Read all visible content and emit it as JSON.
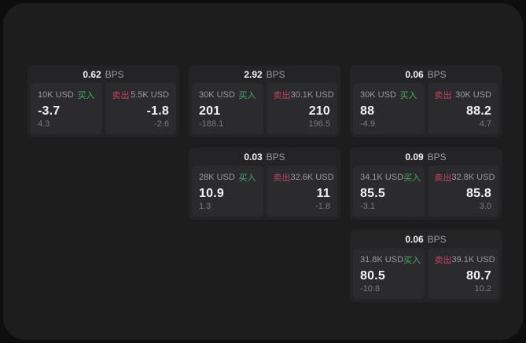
{
  "colors": {
    "outer_bg": "#0e0e0e",
    "panel_bg": "#1d1d1e",
    "card_bg": "#242426",
    "tile_bg": "#2b2b2d",
    "text_primary": "#f2f2f3",
    "text_secondary": "#9a9a9d",
    "text_muted": "#7b7b7f",
    "buy_green": "#44ab5e",
    "sell_red": "#c04459"
  },
  "labels": {
    "bps": "BPS",
    "buy": "买入",
    "sell": "卖出"
  },
  "cards": [
    {
      "row": 1,
      "col": 1,
      "bps": "0.62",
      "buy": {
        "amount": "10K USD",
        "price": "-3.7",
        "delta": "4.3"
      },
      "sell": {
        "amount": "5.5K USD",
        "price": "-1.8",
        "delta": "-2.6"
      }
    },
    {
      "row": 1,
      "col": 2,
      "bps": "2.92",
      "buy": {
        "amount": "30K USD",
        "price": "201",
        "delta": "-188.1"
      },
      "sell": {
        "amount": "30.1K USD",
        "price": "210",
        "delta": "196.5"
      }
    },
    {
      "row": 1,
      "col": 3,
      "bps": "0.06",
      "buy": {
        "amount": "30K USD",
        "price": "88",
        "delta": "-4.9"
      },
      "sell": {
        "amount": "30K USD",
        "price": "88.2",
        "delta": "4.7"
      }
    },
    {
      "row": 2,
      "col": 2,
      "bps": "0.03",
      "buy": {
        "amount": "28K USD",
        "price": "10.9",
        "delta": "1.3"
      },
      "sell": {
        "amount": "32.6K USD",
        "price": "11",
        "delta": "-1.8"
      }
    },
    {
      "row": 2,
      "col": 3,
      "bps": "0.09",
      "buy": {
        "amount": "34.1K USD",
        "price": "85.5",
        "delta": "-3.1"
      },
      "sell": {
        "amount": "32.8K USD",
        "price": "85.8",
        "delta": "3.0"
      }
    },
    {
      "row": 3,
      "col": 3,
      "bps": "0.06",
      "buy": {
        "amount": "31.8K USD",
        "price": "80.5",
        "delta": "-10.8"
      },
      "sell": {
        "amount": "39.1K USD",
        "price": "80.7",
        "delta": "10.2"
      }
    }
  ]
}
